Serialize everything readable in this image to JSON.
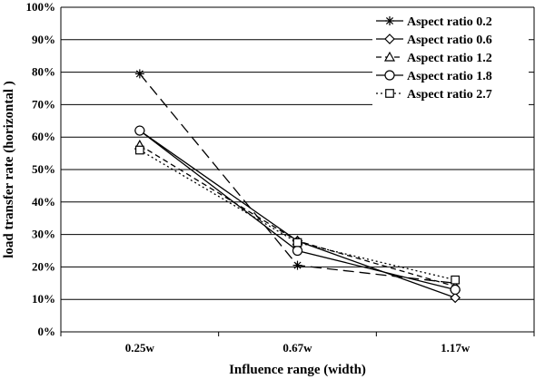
{
  "chart_data": {
    "type": "line",
    "title": "",
    "xlabel": "Influence range (width)",
    "ylabel": "load transfer rate (horizontal )",
    "categories": [
      "0.25w",
      "0.67w",
      "1.17w"
    ],
    "ylim": [
      0,
      100
    ],
    "yticks": [
      "0%",
      "10%",
      "20%",
      "30%",
      "40%",
      "50%",
      "60%",
      "70%",
      "80%",
      "90%",
      "100%"
    ],
    "grid": "horizontal",
    "legend": "top-right",
    "series": [
      {
        "name": "Aspect ratio 0.2",
        "values": [
          79.5,
          20.5,
          15
        ],
        "marker": "asterisk",
        "dash": "long-dash"
      },
      {
        "name": "Aspect ratio 0.6",
        "values": [
          62,
          28,
          10.5
        ],
        "marker": "diamond",
        "dash": "solid"
      },
      {
        "name": "Aspect ratio 1.2",
        "values": [
          57.5,
          28,
          14
        ],
        "marker": "triangle",
        "dash": "dash"
      },
      {
        "name": "Aspect ratio 1.8",
        "values": [
          62,
          25,
          13
        ],
        "marker": "circle",
        "dash": "solid"
      },
      {
        "name": "Aspect ratio 2.7",
        "values": [
          56,
          27.5,
          16
        ],
        "marker": "square",
        "dash": "dot"
      }
    ]
  }
}
